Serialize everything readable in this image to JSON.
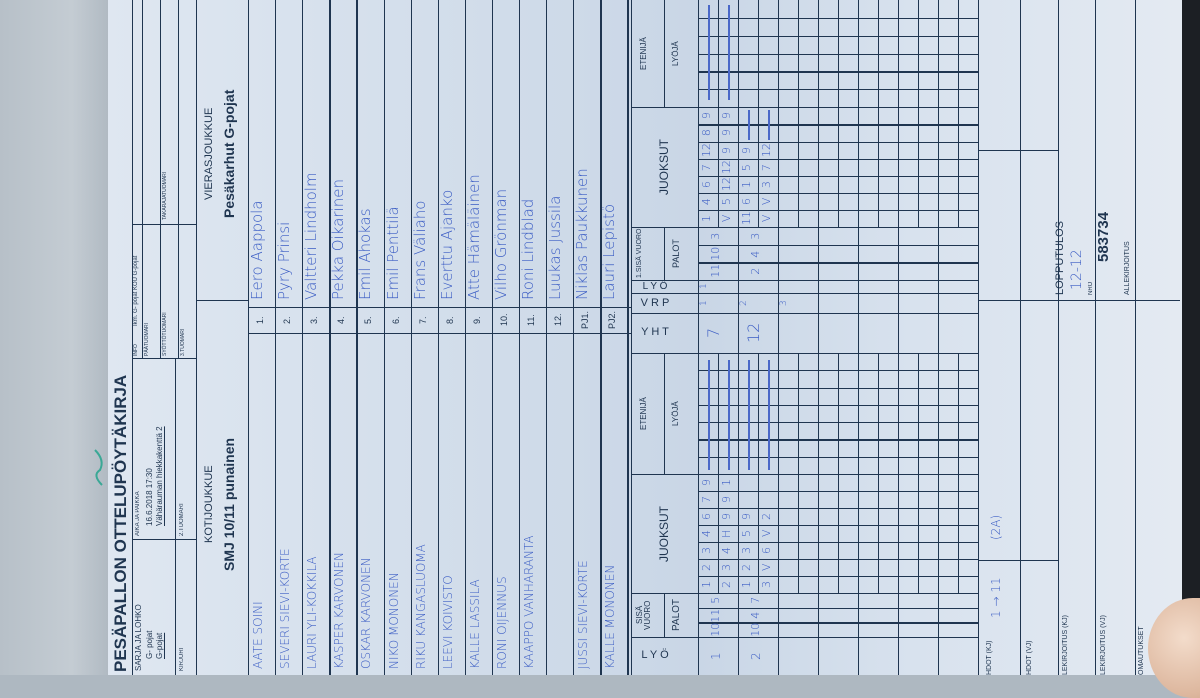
{
  "title": "PESÄPALLON OTTELUPÖYTÄKIRJA",
  "header": {
    "sarja_label": "SARJA JA LOHKO",
    "sarja_value1": "G- pojat",
    "sarja_value2": "G-pojat",
    "kirjuri": "KIRJURI",
    "aika_label": "AIKA JA PAIKKA",
    "aika_value1": "16.6.2018 17:30",
    "aika_value2": "Vähärauman hiekkakenttä 2",
    "tuomari2": "2.TUOMARI",
    "info_label": "INFO",
    "info_value": "Ikm. G- pojat KOU G-pojat",
    "paatuomari": "PÄÄTUOMARI",
    "syottotuomari": "SYÖTTÖTUOMARI",
    "tuomari3": "3.TUOMARI",
    "takarajatuomari": "TAKARAJATUOMARI"
  },
  "home": {
    "label": "KOTIJOUKKUE",
    "name": "SMJ 10/11 punainen",
    "players": [
      "AATE SOINI",
      "SEVERI SIEVI-KORTE",
      "LAURI YLI-KOKKILA",
      "KASPER KARVONEN",
      "OSKAR KARVONEN",
      "NIKO MONONEN",
      "RIKU KANGASLUOMA",
      "LEEVI KOIVISTO",
      "KALLE LASSILA",
      "RONI OIJENNUS",
      "KAAPPO VANHARANTA",
      "",
      "JUSSI SIEVI-KORTE",
      "KALLE MONONEN"
    ]
  },
  "away": {
    "label": "VIERASJOUKKUE",
    "name": "Pesäkarhut G-pojat",
    "players": [
      "Eero Aappola",
      "Pyry Prinsi",
      "Valtteri Lindholm",
      "Pekka Oikarinen",
      "Emil Ahokas",
      "Emil Penttilä",
      "Frans Väliaho",
      "Everttu Ajanko",
      "Atte Hämäläinen",
      "Vilho Grönman",
      "Roni Lindblad",
      "Luukas Jussila",
      "Niklas Paukkunen",
      "Lauri Lepistö"
    ]
  },
  "numbers": [
    "1.",
    "2.",
    "3.",
    "4.",
    "5.",
    "6.",
    "7.",
    "8.",
    "9.",
    "10.",
    "11.",
    "12.",
    "PJ1.",
    "PJ2."
  ],
  "scoring": {
    "headers": {
      "lyo": "L Y Ö",
      "sisa_vuoro": "SISÄ VUORO",
      "palot": "PALOT",
      "juoksut": "JUOKSUT",
      "etenija": "ETENIJÄ",
      "lyoja": "LYÖJÄ",
      "yht": "Y H T",
      "vrp": "V R P",
      "away_sisa_vuoro": "1.SISÄ VUORO"
    },
    "home_innings": [
      {
        "lyo": "1",
        "sisavuoro": [
          "10",
          "11",
          "5"
        ],
        "juoksut": [
          [
            "1",
            "2",
            "3",
            "4",
            "6",
            "7",
            "9"
          ],
          [
            "2",
            "3",
            "4",
            "H",
            "9",
            "9",
            "1"
          ]
        ]
      },
      {
        "lyo": "2",
        "sisavuoro": [
          "10",
          "4",
          "7"
        ],
        "juoksut": [
          [
            "1",
            "2",
            "3",
            "5",
            "9"
          ],
          [
            "3",
            "V",
            "6",
            "V",
            "2"
          ]
        ]
      }
    ],
    "middle": {
      "yht": [
        "7",
        "12"
      ],
      "vrp": [
        "1",
        "2",
        "3"
      ],
      "lyo": [
        "1"
      ]
    },
    "away_innings": [
      {
        "sisavuoro": [
          "11",
          "10",
          "3"
        ],
        "juoksut": [
          [
            "1",
            "4",
            "6",
            "7",
            "12",
            "8",
            "9"
          ],
          [
            "V",
            "5",
            "12",
            "12",
            "9",
            "9",
            "9"
          ]
        ]
      },
      {
        "sisavuoro": [
          "2",
          "4",
          "3"
        ],
        "juoksut": [
          [
            "11",
            "6",
            "1",
            "5",
            "9"
          ],
          [
            "V",
            "V",
            "3",
            "7",
            "12"
          ]
        ]
      }
    ]
  },
  "footer": {
    "hdot_kj": "HDOT (KJ)",
    "hdot_kj_note": "1 → 11",
    "hdot_kj_note2": "(2A)",
    "hdot_vj": "HDOT (VJ)",
    "allekirjoitus_kj": "LEKIRJOITUS (KJ)",
    "allekirjoitus_vj": "LEKIRJOITUS (VJ)",
    "huomautukset": "OMAUTUKSET",
    "lopputulos_label": "LOPPUTULOS",
    "lopputulos_value": "12-12",
    "nro_label": "NRO",
    "nro_value": "583734",
    "allekirjoitus": "ALLEKIRJOITUS"
  },
  "colors": {
    "ink": "#1f3550",
    "pen": "#3a5cc4",
    "paper": "#d3deeb"
  }
}
